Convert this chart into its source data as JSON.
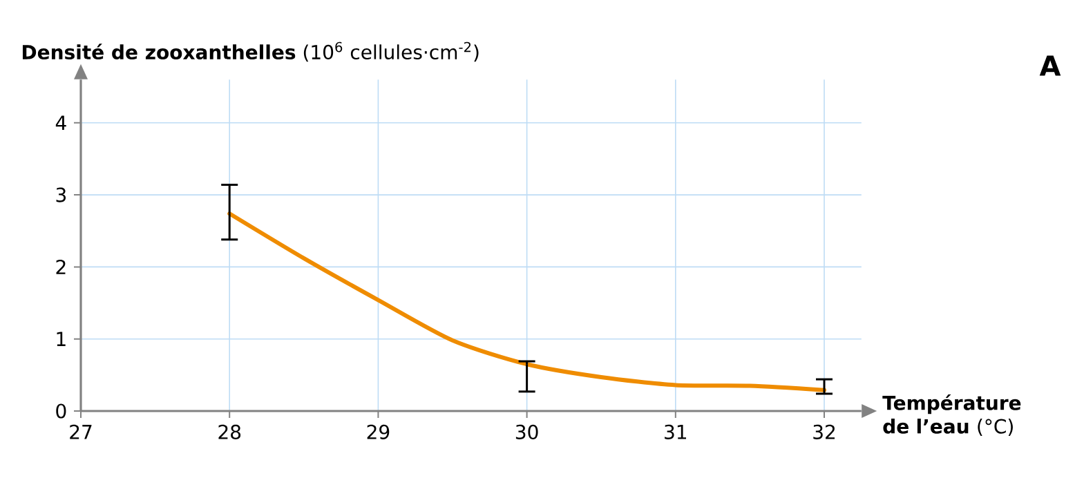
{
  "chart_data": {
    "type": "line",
    "xlabel": "**Température de l’eau** (°C)",
    "ylabel": "**Densité de zooxanthelles** (10$^{6}$ cellules·cm$^{-2}$)",
    "annotations": [
      "**A**"
    ],
    "x": [
      28,
      28.5,
      29,
      29.5,
      30,
      30.5,
      31,
      31.5,
      32
    ],
    "series": [
      {
        "color": "#ef8c00",
        "values": [
          2.74,
          2.12,
          1.54,
          0.98,
          0.65,
          0.47,
          0.36,
          0.35,
          0.29
        ],
        "errors": [
          [
            2.38,
            3.14
          ],
          null,
          null,
          null,
          [
            0.27,
            0.69
          ],
          null,
          null,
          null,
          [
            0.24,
            0.44
          ]
        ]
      }
    ],
    "xlim": [
      27,
      32.25
    ],
    "ylim": [
      0,
      4.6
    ],
    "xticks": [
      27,
      28,
      29,
      30,
      31,
      32
    ],
    "yticks": [
      0,
      1,
      2,
      3,
      4
    ],
    "grid": true,
    "marker": "none",
    "line_style": "solid"
  }
}
